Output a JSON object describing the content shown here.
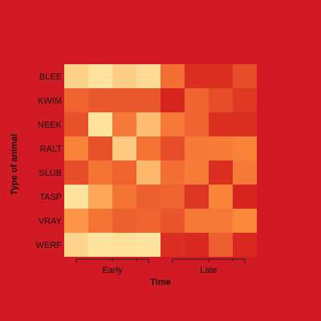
{
  "chart_data": {
    "type": "heatmap",
    "xlabel": "Time",
    "ylabel": "Type of animal",
    "rows": [
      "BLEE",
      "KWIM",
      "NEEK",
      "RALT",
      "SLUB",
      "TASP",
      "VRAY",
      "WERF"
    ],
    "column_groups": [
      {
        "label": "Early",
        "columns": 4
      },
      {
        "label": "Late",
        "columns": 4
      }
    ],
    "colors": {
      "background": "#d21a24",
      "low": "#d7241e",
      "high": "#ffe39e"
    },
    "values": [
      [
        0.9,
        1.0,
        0.88,
        0.95,
        0.35,
        0.05,
        0.05,
        0.2
      ],
      [
        0.3,
        0.25,
        0.25,
        0.25,
        0.0,
        0.3,
        0.2,
        0.1
      ],
      [
        0.22,
        1.0,
        0.4,
        0.78,
        0.4,
        0.3,
        0.05,
        0.05
      ],
      [
        0.45,
        0.22,
        0.85,
        0.38,
        0.2,
        0.4,
        0.42,
        0.45
      ],
      [
        0.2,
        0.38,
        0.3,
        0.75,
        0.35,
        0.42,
        0.05,
        0.4
      ],
      [
        1.0,
        0.65,
        0.38,
        0.28,
        0.3,
        0.08,
        0.45,
        0.0
      ],
      [
        0.55,
        0.38,
        0.28,
        0.3,
        0.24,
        0.4,
        0.4,
        0.48
      ],
      [
        0.92,
        1.0,
        0.98,
        1.0,
        0.05,
        0.02,
        0.28,
        0.02
      ]
    ]
  }
}
